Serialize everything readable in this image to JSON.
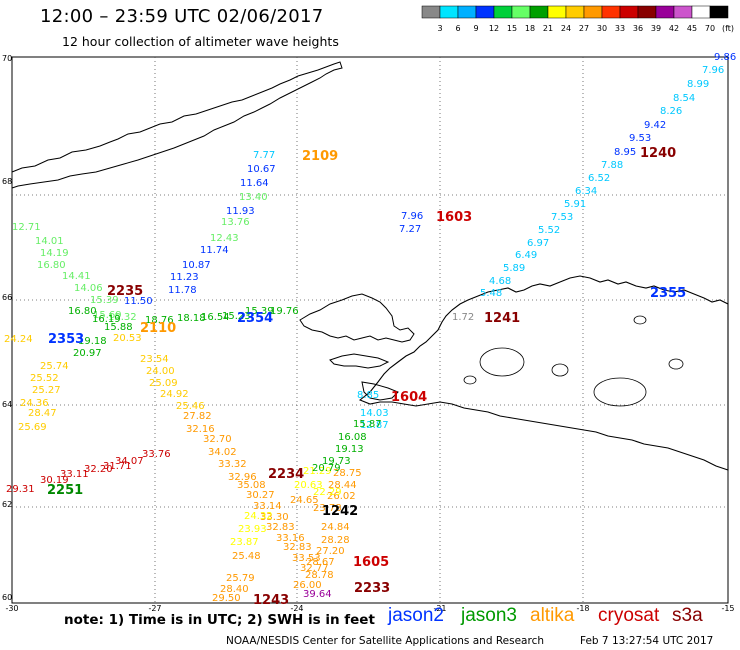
{
  "header": {
    "title": "12:00 – 23:59 UTC 02/06/2017",
    "subtitle": "12 hour collection of altimeter wave heights"
  },
  "colorbar": {
    "colors": [
      "#888888",
      "#00e5ff",
      "#00b0ff",
      "#0033ff",
      "#00d03a",
      "#66ff66",
      "#00a000",
      "#ffff00",
      "#ffcc00",
      "#ff9900",
      "#ff3300",
      "#cc0000",
      "#880000",
      "#990099",
      "#cc55cc",
      "#ffffff",
      "#000000"
    ],
    "labels": [
      "3",
      "6",
      "9",
      "12",
      "15",
      "18",
      "21",
      "24",
      "27",
      "30",
      "33",
      "36",
      "39",
      "42",
      "45",
      "70",
      "(ft)"
    ]
  },
  "axes": {
    "lat_labels": [
      "70",
      "68",
      "66",
      "64",
      "62",
      "60"
    ],
    "lon_labels": [
      "-30",
      "-27",
      "-24",
      "-21",
      "-18",
      "-15"
    ]
  },
  "tracks": [
    {
      "color": "#0033ff",
      "values": [
        "9.86"
      ]
    },
    {
      "color": "#00c8ff",
      "values": [
        "7.96",
        "8.99",
        "8.54",
        "8.26"
      ]
    },
    {
      "color": "#0033ff",
      "values": [
        "9.42",
        "9.53",
        "8.95"
      ]
    },
    {
      "color": "#00c8ff",
      "values": [
        "7.88",
        "6.52",
        "6.34",
        "5.91",
        "7.53",
        "5.52",
        "6.97",
        "6.49",
        "5.89",
        "4.68",
        "5.48"
      ]
    },
    {
      "color": "#00c8ff",
      "values": [
        "7.77"
      ]
    },
    {
      "color": "#0033ff",
      "values": [
        "10.67",
        "11.64",
        "11.93",
        "11.74",
        "10.87",
        "11.23",
        "11.78",
        "11.50"
      ]
    },
    {
      "color": "#66ee66",
      "values": [
        "13.40",
        "13.76",
        "12.43",
        "12.71",
        "14.01",
        "14.19",
        "16.80",
        "14.41",
        "14.06",
        "15.39",
        "15.69",
        "15.32"
      ]
    },
    {
      "color": "#00b000",
      "values": [
        "16.80",
        "18.18",
        "16.54",
        "15.23",
        "15.39",
        "15.88",
        "19.18",
        "20.97",
        "18.76",
        "16.19",
        "19.76"
      ]
    },
    {
      "color": "#ffcc00",
      "values": [
        "20.53",
        "23.54",
        "24.00",
        "25.09",
        "24.92",
        "25.46",
        "24.24",
        "25.52",
        "25.74",
        "25.27",
        "24.36",
        "28.47",
        "25.69"
      ]
    },
    {
      "color": "#ff9900",
      "values": [
        "27.82",
        "32.16",
        "32.70",
        "34.02",
        "33.32",
        "32.96",
        "35.08",
        "30.27",
        "33.14",
        "33.30",
        "32.83",
        "33.16",
        "32.83",
        "33.53",
        "32.77"
      ]
    },
    {
      "color": "#cc0000",
      "values": [
        "33.76",
        "34.07",
        "31.71",
        "32.20",
        "33.11",
        "30.19",
        "29.31"
      ]
    },
    {
      "color": "#ff9900",
      "values": [
        "24.65",
        "28.75",
        "28.44",
        "26.02",
        "23.78",
        "24.84",
        "28.28",
        "27.20",
        "28.67",
        "28.78",
        "26.00",
        "25.48",
        "25.79",
        "28.40",
        "29.50"
      ]
    },
    {
      "color": "#ffff00",
      "values": [
        "21.29",
        "20.63",
        "22.29",
        "24.32",
        "23.93",
        "23.87"
      ]
    },
    {
      "color": "#00d0ff",
      "values": [
        "8.85",
        "14.03",
        "12.87"
      ]
    },
    {
      "color": "#00b000",
      "values": [
        "15.87",
        "16.08",
        "19.13",
        "19.73",
        "20.79"
      ]
    },
    {
      "color": "#990099",
      "values": [
        "39.64"
      ]
    },
    {
      "color": "#888888",
      "values": [
        "1.72"
      ]
    },
    {
      "color": "#0033ff",
      "values": [
        "7.96",
        "7.27"
      ]
    }
  ],
  "time_labels": [
    {
      "text": "1240",
      "color": "#880000"
    },
    {
      "text": "2109",
      "color": "#ff9900"
    },
    {
      "text": "1603",
      "color": "#cc0000"
    },
    {
      "text": "2235",
      "color": "#880000"
    },
    {
      "text": "2355",
      "color": "#0033ff"
    },
    {
      "text": "2354",
      "color": "#0033ff"
    },
    {
      "text": "2110",
      "color": "#ff9900"
    },
    {
      "text": "2353",
      "color": "#0033ff"
    },
    {
      "text": "1241",
      "color": "#880000"
    },
    {
      "text": "1604",
      "color": "#cc0000"
    },
    {
      "text": "2234",
      "color": "#880000"
    },
    {
      "text": "2251",
      "color": "#008800"
    },
    {
      "text": "1242",
      "color": "#000000"
    },
    {
      "text": "1605",
      "color": "#cc0000"
    },
    {
      "text": "1243",
      "color": "#880000"
    },
    {
      "text": "2233",
      "color": "#880000"
    }
  ],
  "footer": {
    "note": "note:  1) Time is in UTC;  2) SWH is in feet",
    "satellites": [
      {
        "name": "jason2",
        "color": "#0033ff"
      },
      {
        "name": "jason3",
        "color": "#009900"
      },
      {
        "name": "altika",
        "color": "#ff9900"
      },
      {
        "name": "cryosat",
        "color": "#cc0000"
      },
      {
        "name": "s3a",
        "color": "#880000"
      }
    ],
    "credit": "NOAA/NESDIS Center for Satellite Applications and Research",
    "timestamp": "Feb  7 13:27:54 UTC 2017"
  }
}
